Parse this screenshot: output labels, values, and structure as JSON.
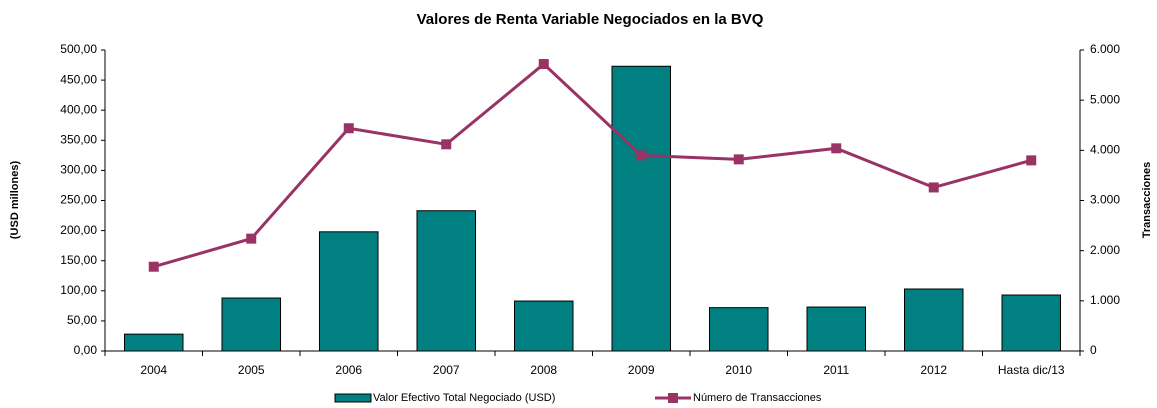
{
  "chart_data": {
    "type": "bar_line",
    "title": "Valores de Renta Variable Negociados en la BVQ",
    "ylabel": "(USD millones)",
    "y2label": "Transacciones",
    "categories": [
      "2004",
      "2005",
      "2006",
      "2007",
      "2008",
      "2009",
      "2010",
      "2011",
      "2012",
      "Hasta dic/13"
    ],
    "series": [
      {
        "name": "Valor Efectivo Total Negociado (USD)",
        "type": "bar",
        "color": "#008080",
        "axis": "y",
        "values": [
          28,
          88,
          198,
          233,
          83,
          473,
          72,
          73,
          103,
          93
        ]
      },
      {
        "name": "Número de Transacciones",
        "type": "line",
        "color": "#993366",
        "axis": "y2",
        "values": [
          1680,
          2240,
          4440,
          4120,
          5720,
          3900,
          3820,
          4040,
          3260,
          3800
        ]
      }
    ],
    "ylim": [
      0,
      500
    ],
    "yticks": [
      {
        "value": 0,
        "label": "0,00"
      },
      {
        "value": 50,
        "label": "50,00"
      },
      {
        "value": 100,
        "label": "100,00"
      },
      {
        "value": 150,
        "label": "150,00"
      },
      {
        "value": 200,
        "label": "200,00"
      },
      {
        "value": 250,
        "label": "250,00"
      },
      {
        "value": 300,
        "label": "300,00"
      },
      {
        "value": 350,
        "label": "350,00"
      },
      {
        "value": 400,
        "label": "400,00"
      },
      {
        "value": 450,
        "label": "450,00"
      },
      {
        "value": 500,
        "label": "500,00"
      }
    ],
    "y2lim": [
      0,
      6000
    ],
    "y2ticks": [
      0,
      {
        "value": 1000,
        "label": "1.000"
      },
      {
        "value": 2000,
        "label": "2.000"
      },
      {
        "value": 3000,
        "label": "3.000"
      },
      {
        "value": 4000,
        "label": "4.000"
      },
      {
        "value": 5000,
        "label": "5.000"
      },
      {
        "value": 6000,
        "label": "6.000"
      }
    ],
    "legend": "bottom"
  }
}
